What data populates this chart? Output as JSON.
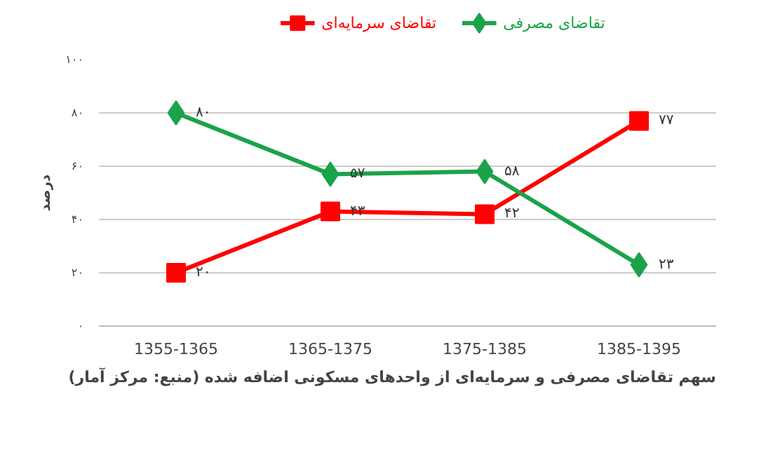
{
  "chart_data": {
    "type": "line",
    "categories": [
      "1355-1365",
      "1365-1375",
      "1375-1385",
      "1385-1395"
    ],
    "ylabel": "درصد",
    "ylim": [
      0,
      100
    ],
    "yticks": [
      {
        "value": 0,
        "label": "۰"
      },
      {
        "value": 20,
        "label": "۲۰"
      },
      {
        "value": 40,
        "label": "۴۰"
      },
      {
        "value": 60,
        "label": "۶۰"
      },
      {
        "value": 80,
        "label": "۸۰"
      },
      {
        "value": 100,
        "label": "۱۰۰"
      }
    ],
    "series": [
      {
        "name": "تقاضای سرمایه‌ای",
        "color": "#ff0000",
        "marker": "square",
        "values": [
          20,
          43,
          42,
          77
        ],
        "value_labels": [
          "۲۰",
          "۴۳",
          "۴۲",
          "۷۷"
        ]
      },
      {
        "name": "تقاضای مصرفی",
        "color": "#1aa34a",
        "marker": "diamond",
        "values": [
          80,
          57,
          58,
          23
        ],
        "value_labels": [
          "۸۰",
          "۵۷",
          "۵۸",
          "۲۳"
        ]
      }
    ],
    "grid": "y",
    "legend": "top",
    "annotations": [
      "سهم تقاضای مصرفی و سرمایه‌ای از واحدهای مسکونی اضافه شده (منبع: مرکز آمار)"
    ]
  }
}
